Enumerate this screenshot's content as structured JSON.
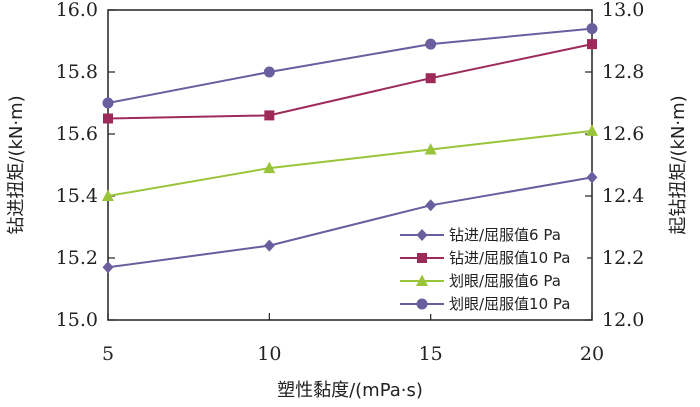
{
  "chart_data": {
    "type": "line",
    "xlabel": "塑性黏度/(mPa·s)",
    "ylabel_left": "钻进扭矩/(kN·m)",
    "ylabel_right": "起钻扭矩/(kN·m)",
    "x": [
      5,
      10,
      15,
      20
    ],
    "xlim": [
      5,
      20
    ],
    "xticks": [
      "5",
      "10",
      "15",
      "20"
    ],
    "ylim_left": [
      15.0,
      16.0
    ],
    "yticks_left": [
      "15.0",
      "15.2",
      "15.4",
      "15.6",
      "15.8",
      "16.0"
    ],
    "ylim_right": [
      12.0,
      13.0
    ],
    "yticks_right": [
      "12.0",
      "12.2",
      "12.4",
      "12.6",
      "12.8",
      "13.0"
    ],
    "grid": false,
    "legend_position": "bottom-right",
    "series": [
      {
        "name": "钻进/屈服值6 Pa",
        "axis": "left",
        "color": "#6a5e9e",
        "marker": "diamond",
        "values": [
          15.17,
          15.24,
          15.37,
          15.46
        ]
      },
      {
        "name": "钻进/屈服值10 Pa",
        "axis": "left",
        "color": "#9e2a5a",
        "marker": "square",
        "values": [
          15.65,
          15.66,
          15.78,
          15.89
        ]
      },
      {
        "name": "划眼/屈服值6 Pa",
        "axis": "left",
        "color": "#9ac43a",
        "marker": "triangle",
        "values": [
          15.4,
          15.49,
          15.55,
          15.61
        ]
      },
      {
        "name": "划眼/屈服值10 Pa",
        "axis": "left",
        "color": "#6a5e9e",
        "marker": "circle",
        "values": [
          15.7,
          15.8,
          15.89,
          15.94
        ]
      }
    ]
  }
}
